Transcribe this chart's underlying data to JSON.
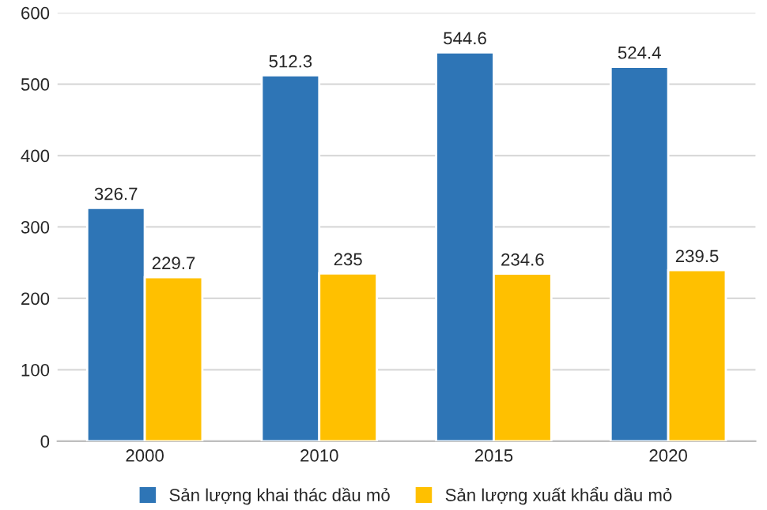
{
  "chart_data": {
    "type": "bar",
    "categories": [
      "2000",
      "2010",
      "2015",
      "2020"
    ],
    "series": [
      {
        "name": "Sản lượng khai thác dầu mỏ",
        "color": "#2e75b6",
        "values": [
          326.7,
          512.3,
          544.6,
          524.4
        ]
      },
      {
        "name": "Sản lượng xuất khẩu dầu mỏ",
        "color": "#ffc000",
        "values": [
          229.7,
          235,
          234.6,
          239.5
        ]
      }
    ],
    "ylim": [
      0,
      600
    ],
    "yticks": [
      0,
      100,
      200,
      300,
      400,
      500,
      600
    ],
    "grid": "y",
    "legend": "bottom",
    "data_labels": true
  }
}
